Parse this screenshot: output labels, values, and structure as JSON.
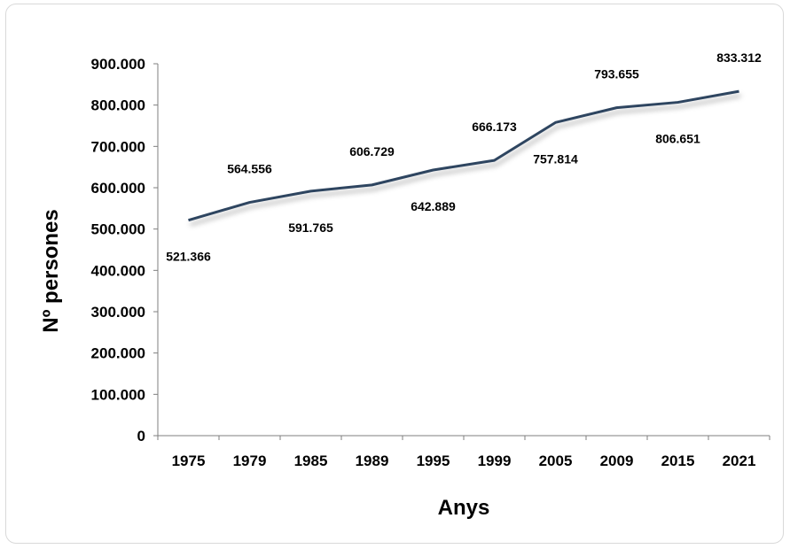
{
  "chart_data": {
    "type": "line",
    "categories": [
      "1975",
      "1979",
      "1985",
      "1989",
      "1995",
      "1999",
      "2005",
      "2009",
      "2015",
      "2021"
    ],
    "values": [
      521366,
      564556,
      591765,
      606729,
      642889,
      666173,
      757814,
      793655,
      806651,
      833312
    ],
    "data_labels": [
      "521.366",
      "564.556",
      "591.765",
      "606.729",
      "642.889",
      "666.173",
      "757.814",
      "793.655",
      "806.651",
      "833.312"
    ],
    "yticks": [
      0,
      100000,
      200000,
      300000,
      400000,
      500000,
      600000,
      700000,
      800000,
      900000
    ],
    "ytick_labels": [
      "0",
      "100.000",
      "200.000",
      "300.000",
      "400.000",
      "500.000",
      "600.000",
      "700.000",
      "800.000",
      "900.000"
    ],
    "ylim": [
      0,
      900000
    ],
    "xlabel": "Anys",
    "ylabel": "Nº persones",
    "title": "",
    "grid": false,
    "legend": "none",
    "line_color": "#2e4560",
    "label_position": [
      "below",
      "above",
      "below",
      "above",
      "below",
      "above",
      "below",
      "above",
      "below",
      "above"
    ]
  }
}
